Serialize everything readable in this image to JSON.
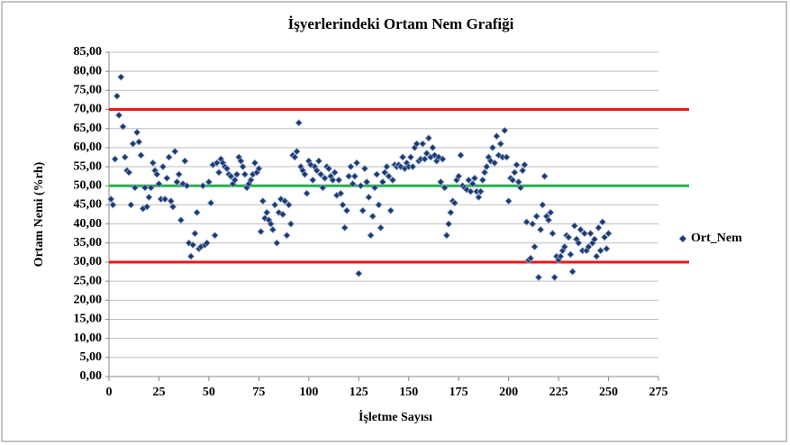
{
  "chart_data": {
    "type": "scatter",
    "title": "İşyerlerindeki Ortam Nem Grafiği",
    "x_label": "İşletme Sayısı",
    "y_label": "Ortam Nemi (%rh)",
    "xlim": [
      0,
      275
    ],
    "xticks": [
      0,
      25,
      50,
      75,
      100,
      125,
      150,
      175,
      200,
      225,
      250,
      275
    ],
    "ylim": [
      0,
      85
    ],
    "yticks": [
      {
        "value": 0,
        "label": "0,00"
      },
      {
        "value": 5,
        "label": "5,00"
      },
      {
        "value": 10,
        "label": "10,00"
      },
      {
        "value": 15,
        "label": "15,00"
      },
      {
        "value": 20,
        "label": "20,00"
      },
      {
        "value": 25,
        "label": "25,00"
      },
      {
        "value": 30,
        "label": "30,00"
      },
      {
        "value": 35,
        "label": "35,00"
      },
      {
        "value": 40,
        "label": "40,00"
      },
      {
        "value": 45,
        "label": "45,00"
      },
      {
        "value": 50,
        "label": "50,00"
      },
      {
        "value": 55,
        "label": "55,00"
      },
      {
        "value": 60,
        "label": "60,00"
      },
      {
        "value": 65,
        "label": "65,00"
      },
      {
        "value": 70,
        "label": "70,00"
      },
      {
        "value": 75,
        "label": "75,00"
      },
      {
        "value": 80,
        "label": "80,00"
      },
      {
        "value": 85,
        "label": "85,00"
      }
    ],
    "grid": true,
    "legend": "right",
    "reference_lines": [
      {
        "value": 70,
        "color": "#e41a1c"
      },
      {
        "value": 50,
        "color": "#22b14c"
      },
      {
        "value": 30,
        "color": "#e41a1c"
      }
    ],
    "x": [
      1,
      2,
      3,
      4,
      5,
      6,
      7,
      8,
      9,
      10,
      11,
      12,
      13,
      14,
      15,
      16,
      17,
      18,
      19,
      20,
      21,
      22,
      23,
      24,
      25,
      26,
      27,
      28,
      29,
      30,
      31,
      32,
      33,
      34,
      35,
      36,
      37,
      38,
      39,
      40,
      41,
      42,
      43,
      44,
      45,
      46,
      47,
      48,
      49,
      50,
      51,
      52,
      53,
      54,
      55,
      56,
      57,
      58,
      59,
      60,
      61,
      62,
      63,
      64,
      65,
      66,
      67,
      68,
      69,
      70,
      71,
      72,
      73,
      74,
      75,
      76,
      77,
      78,
      79,
      80,
      81,
      82,
      83,
      84,
      85,
      86,
      87,
      88,
      89,
      90,
      91,
      92,
      93,
      94,
      95,
      96,
      97,
      98,
      99,
      100,
      101,
      102,
      103,
      104,
      105,
      106,
      107,
      108,
      109,
      110,
      111,
      112,
      113,
      114,
      115,
      116,
      117,
      118,
      119,
      120,
      121,
      122,
      123,
      124,
      125,
      126,
      127,
      128,
      129,
      130,
      131,
      132,
      133,
      134,
      135,
      136,
      137,
      138,
      139,
      140,
      141,
      142,
      143,
      144,
      145,
      146,
      147,
      148,
      149,
      150,
      151,
      152,
      153,
      154,
      155,
      156,
      157,
      158,
      159,
      160,
      161,
      162,
      163,
      164,
      165,
      166,
      167,
      168,
      169,
      170,
      171,
      172,
      173,
      174,
      175,
      176,
      177,
      178,
      179,
      180,
      181,
      182,
      183,
      184,
      185,
      186,
      187,
      188,
      189,
      190,
      191,
      192,
      193,
      194,
      195,
      196,
      197,
      198,
      199,
      200,
      201,
      202,
      203,
      204,
      205,
      206,
      207,
      208,
      209,
      210,
      211,
      212,
      213,
      214,
      215,
      216,
      217,
      218,
      219,
      220,
      221,
      222,
      223,
      224,
      225,
      226,
      227,
      228,
      229,
      230,
      231,
      232,
      233,
      234,
      235,
      236,
      237,
      238,
      239,
      240,
      241,
      242,
      243,
      244,
      245,
      246,
      247,
      248,
      249,
      250
    ],
    "series": [
      {
        "name": "Ort_Nem",
        "color": "#1f3864",
        "values": [
          46.5,
          45,
          57,
          73.5,
          68.5,
          78.5,
          65.5,
          57.5,
          54,
          53.5,
          45,
          61,
          49.5,
          64,
          61.5,
          58,
          44,
          49.5,
          44.5,
          47,
          49.5,
          56,
          54,
          53,
          50.5,
          46.5,
          55,
          46.5,
          52,
          57.5,
          46,
          44.5,
          59,
          51,
          53,
          41,
          50.5,
          56.5,
          50,
          35,
          31.5,
          34.5,
          37.5,
          43,
          33.5,
          34,
          50,
          34.5,
          35,
          51,
          45.5,
          55.5,
          37,
          56,
          53.5,
          57,
          56,
          55,
          54.5,
          53,
          52.5,
          50.5,
          51.5,
          53,
          57.5,
          56.5,
          55,
          53,
          49.5,
          50.5,
          51.5,
          53,
          56,
          53.5,
          54.5,
          38,
          46,
          41.5,
          43,
          41,
          40,
          38.5,
          45,
          35,
          43,
          46.5,
          42.5,
          46,
          37,
          45,
          40,
          58,
          57.5,
          59,
          66.5,
          55,
          54,
          53,
          48,
          56.5,
          55.5,
          51.5,
          55,
          54,
          56.5,
          53,
          49.5,
          52,
          55,
          54.5,
          52.5,
          51.5,
          53.5,
          47.5,
          51.5,
          48,
          45,
          39,
          43.5,
          52.5,
          55,
          50.5,
          52.5,
          56,
          27,
          50,
          43.5,
          54.5,
          51,
          47,
          37,
          42,
          49.5,
          53,
          45,
          39,
          51,
          53.5,
          55,
          52.5,
          43.5,
          51.5,
          55.5,
          55,
          55.5,
          55,
          57.5,
          54.5,
          56,
          55,
          57.5,
          55,
          60,
          61,
          56.5,
          57,
          61,
          57,
          58.5,
          62.5,
          57.5,
          60,
          58,
          56.5,
          57.5,
          51,
          57,
          49.5,
          37,
          40,
          43,
          46,
          45.5,
          51.5,
          52.5,
          58,
          50,
          49.5,
          49,
          51.5,
          48.5,
          50.5,
          52,
          48.5,
          47,
          48.5,
          51.5,
          53.5,
          55,
          57.5,
          56.5,
          60,
          56,
          63,
          58,
          61,
          57.5,
          64.5,
          57.5,
          46,
          52,
          51.5,
          53.5,
          55.5,
          51,
          49.5,
          54,
          55.5,
          40.5,
          30.5,
          31,
          40,
          34,
          42,
          26,
          38.5,
          45,
          52.5,
          42,
          41,
          43,
          37.5,
          26,
          31.5,
          30.5,
          31.5,
          33,
          34,
          37,
          36.5,
          32,
          27.5,
          39.5,
          36,
          35,
          38.5,
          33,
          37.5,
          33,
          34,
          37.5,
          35,
          36,
          31.5,
          39,
          33,
          40.5,
          36.5,
          33.5,
          37.5
        ]
      }
    ]
  }
}
